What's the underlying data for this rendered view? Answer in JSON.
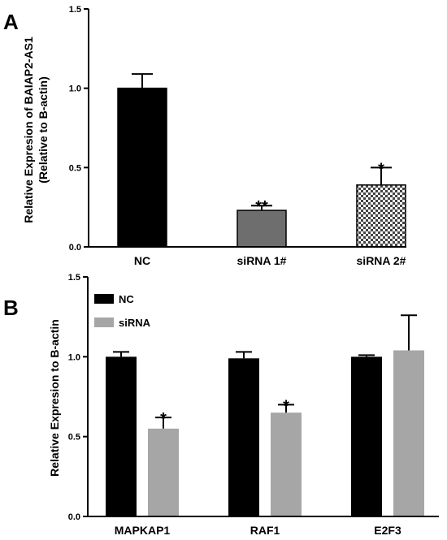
{
  "chart_data": [
    {
      "type": "bar",
      "panel": "A",
      "ylabel": "Relative Expresion of BAIAP2-AS1",
      "ylabel2": "(Relative to B-actin)",
      "ylim": [
        0,
        1.5
      ],
      "yticks": [
        "0.0",
        "0.5",
        "1.0",
        "1.5"
      ],
      "categories": [
        "NC",
        "siRNA 1#",
        "siRNA 2#"
      ],
      "values": [
        1.0,
        0.23,
        0.39
      ],
      "errors": [
        0.09,
        0.03,
        0.11
      ],
      "significance": [
        "",
        "**",
        "*"
      ],
      "colors": [
        "#000000",
        "#6e6e6e",
        "checker"
      ]
    },
    {
      "type": "bar",
      "panel": "B",
      "ylabel": "Relative Expresion  to B-actin",
      "ylim": [
        0,
        1.5
      ],
      "yticks": [
        "0.0",
        "0.5",
        "1.0",
        "1.5"
      ],
      "categories": [
        "MAPKAP1",
        "RAF1",
        "E2F3"
      ],
      "series": [
        {
          "name": "NC",
          "values": [
            1.0,
            0.99,
            1.0
          ],
          "errors": [
            0.03,
            0.04,
            0.01
          ],
          "color": "#000000"
        },
        {
          "name": "siRNA",
          "values": [
            0.55,
            0.65,
            1.04
          ],
          "errors": [
            0.07,
            0.05,
            0.22
          ],
          "color": "#a6a6a6"
        }
      ],
      "significance": [
        "*",
        "*",
        ""
      ],
      "legend_position": "top-left"
    }
  ]
}
